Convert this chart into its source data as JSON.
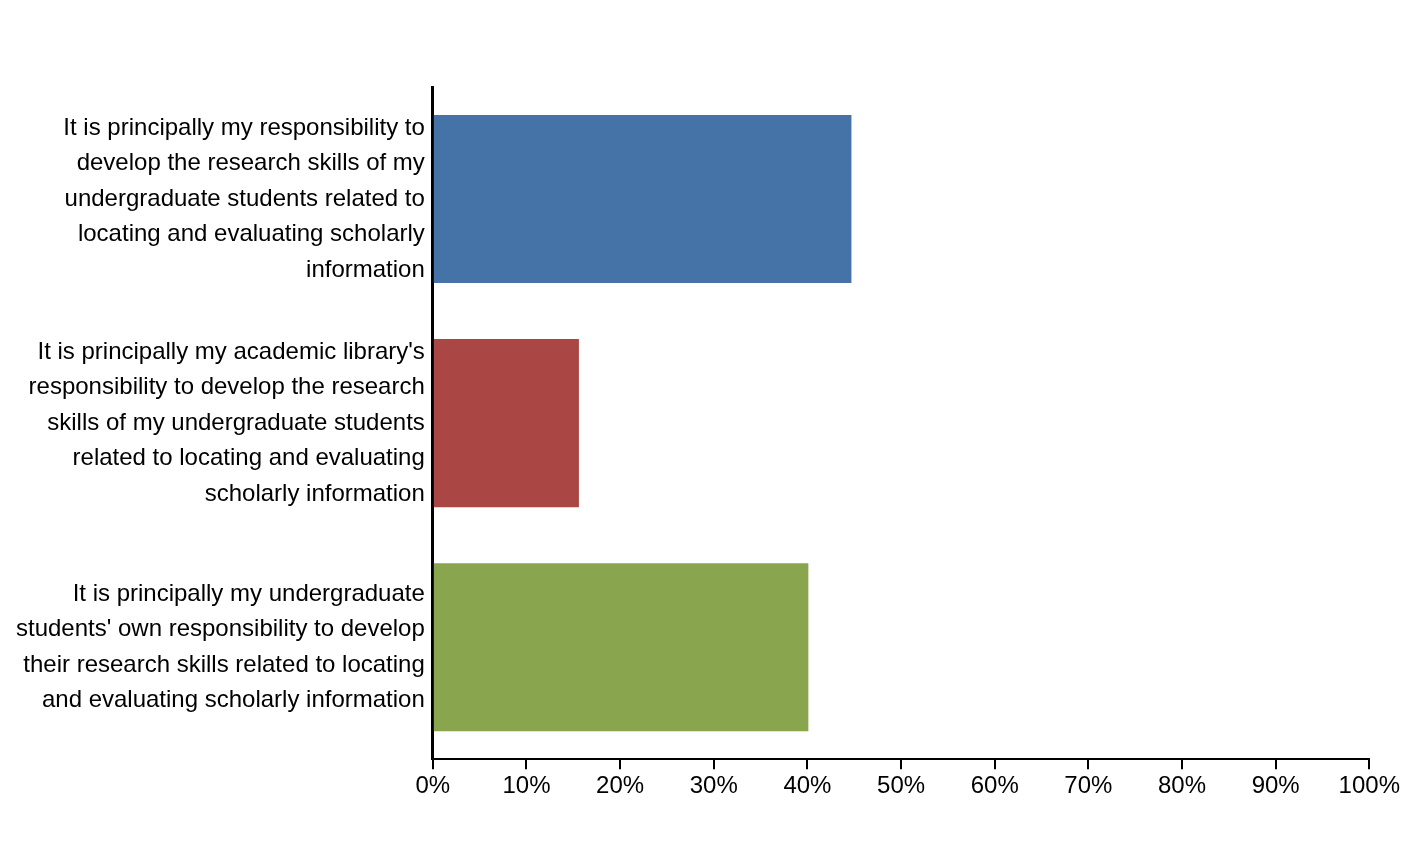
{
  "chart_data": {
    "type": "bar",
    "orientation": "horizontal",
    "categories": [
      "It is principally my responsibility to develop the research skills of my undergraduate students related to locating and evaluating scholarly information",
      "It is principally my academic library's responsibility to develop the research skills of my undergraduate students related to locating and evaluating scholarly information",
      "It is principally my undergraduate students' own responsibility to develop their research skills related to locating and evaluating scholarly information"
    ],
    "values": [
      44.7,
      15.6,
      40.1
    ],
    "colors": [
      "#4573a7",
      "#aa4643",
      "#89a54e"
    ],
    "xlim": [
      0,
      100
    ],
    "xticks": [
      {
        "value": 0,
        "label": "0%"
      },
      {
        "value": 10,
        "label": "10%"
      },
      {
        "value": 20,
        "label": "20%"
      },
      {
        "value": 30,
        "label": "30%"
      },
      {
        "value": 40,
        "label": "40%"
      },
      {
        "value": 50,
        "label": "50%"
      },
      {
        "value": 60,
        "label": "60%"
      },
      {
        "value": 70,
        "label": "70%"
      },
      {
        "value": 80,
        "label": "80%"
      },
      {
        "value": 90,
        "label": "90%"
      },
      {
        "value": 100,
        "label": "100%"
      }
    ],
    "grid": false,
    "legend": false
  }
}
